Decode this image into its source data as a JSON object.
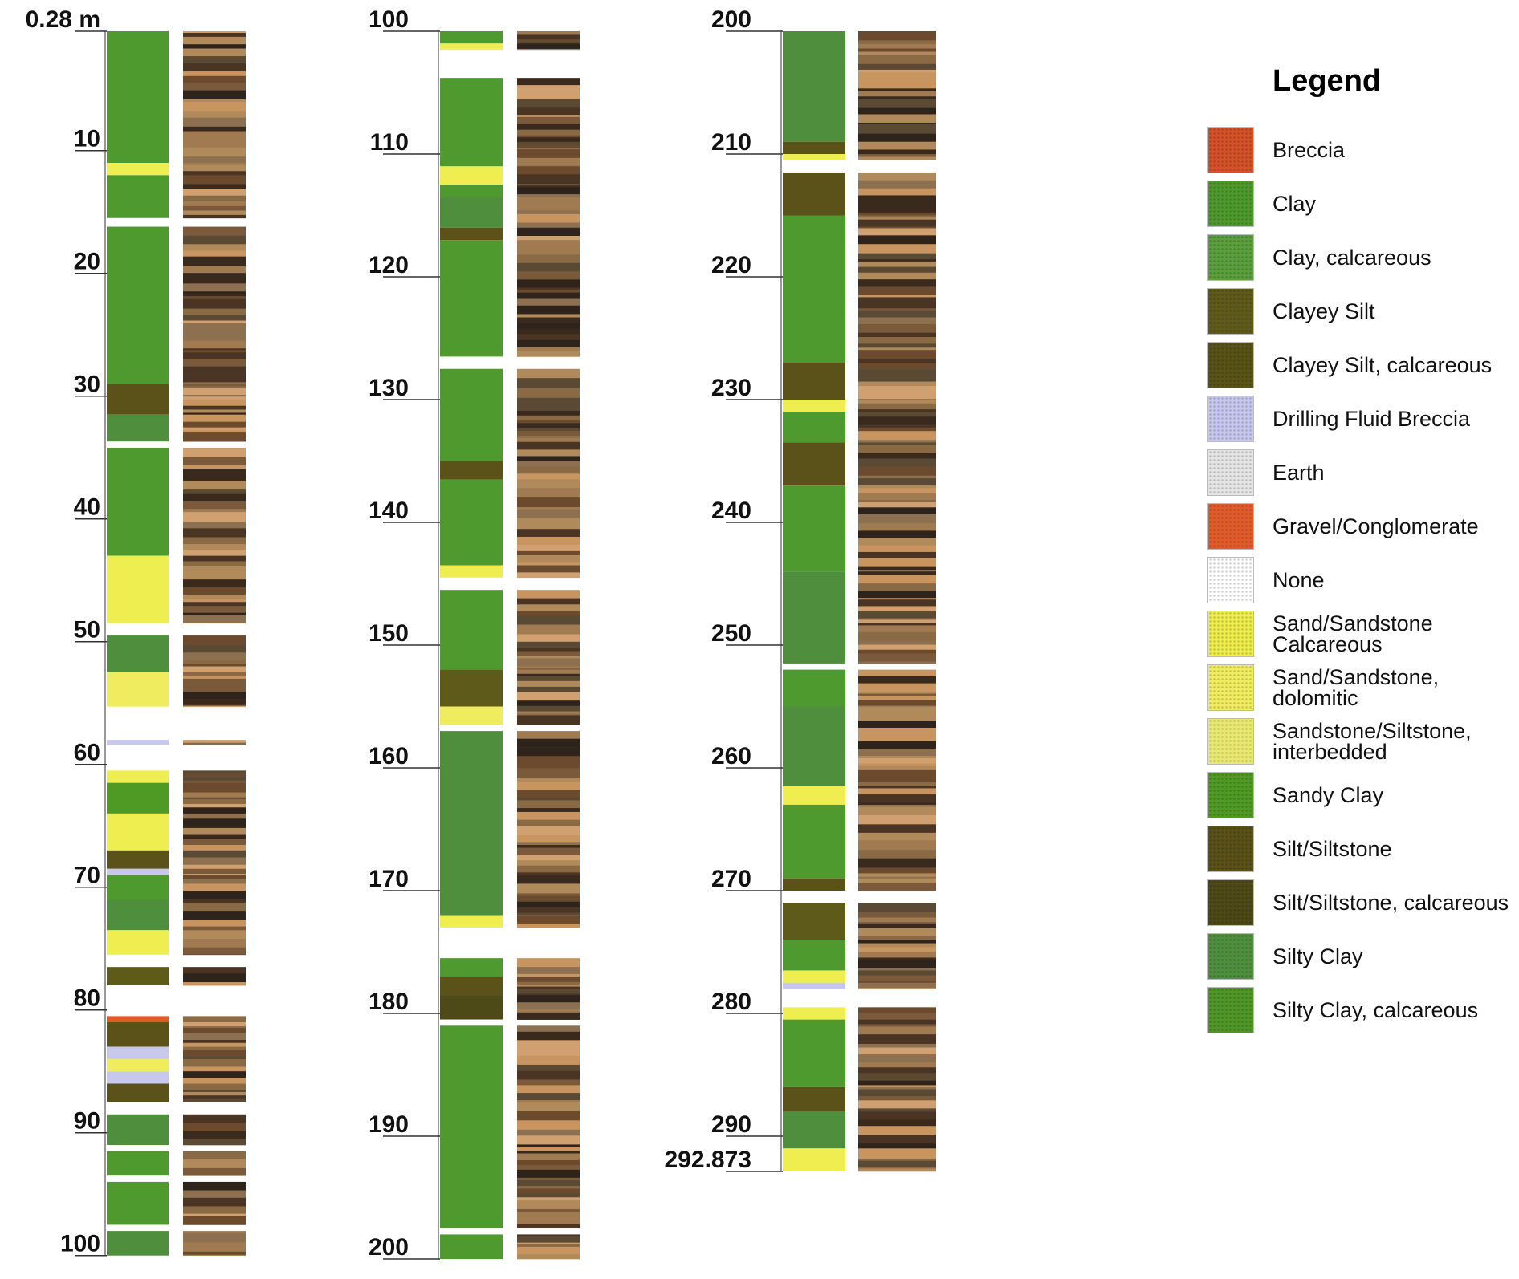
{
  "chart_data": [
    {
      "type": "lithology-log",
      "ylim": [
        0.28,
        100
      ],
      "yticks": [
        {
          "value": 0.28,
          "label": "0.28 m"
        },
        10,
        20,
        30,
        40,
        50,
        60,
        70,
        80,
        90,
        100
      ],
      "intervals": [
        {
          "top": 0.28,
          "bottom": 11,
          "lithology": "Clay"
        },
        {
          "top": 11,
          "bottom": 12,
          "lithology": "Sand/Sandstone Calcareous"
        },
        {
          "top": 12,
          "bottom": 15.5,
          "lithology": "Clay"
        },
        {
          "top": 15.5,
          "bottom": 16.2,
          "lithology": "None"
        },
        {
          "top": 16.2,
          "bottom": 29,
          "lithology": "Clay"
        },
        {
          "top": 29,
          "bottom": 31.5,
          "lithology": "Silt/Siltstone"
        },
        {
          "top": 31.5,
          "bottom": 33.7,
          "lithology": "Silty Clay"
        },
        {
          "top": 33.7,
          "bottom": 34.2,
          "lithology": "None"
        },
        {
          "top": 34.2,
          "bottom": 43,
          "lithology": "Clay"
        },
        {
          "top": 43,
          "bottom": 48.5,
          "lithology": "Sand/Sandstone Calcareous"
        },
        {
          "top": 48.5,
          "bottom": 49.5,
          "lithology": "None"
        },
        {
          "top": 49.5,
          "bottom": 52.5,
          "lithology": "Silty Clay"
        },
        {
          "top": 52.5,
          "bottom": 55.3,
          "lithology": "Sand/Sandstone, dolomitic"
        },
        {
          "top": 55.3,
          "bottom": 58,
          "lithology": "None"
        },
        {
          "top": 58,
          "bottom": 58.4,
          "lithology": "Drilling Fluid Breccia"
        },
        {
          "top": 58.4,
          "bottom": 60.5,
          "lithology": "None"
        },
        {
          "top": 60.5,
          "bottom": 61.5,
          "lithology": "Sand/Sandstone Calcareous"
        },
        {
          "top": 61.5,
          "bottom": 64,
          "lithology": "Sandy Clay"
        },
        {
          "top": 64,
          "bottom": 67,
          "lithology": "Sand/Sandstone Calcareous"
        },
        {
          "top": 67,
          "bottom": 68.5,
          "lithology": "Silt/Siltstone"
        },
        {
          "top": 68.5,
          "bottom": 69,
          "lithology": "Drilling Fluid Breccia"
        },
        {
          "top": 69,
          "bottom": 71,
          "lithology": "Clay"
        },
        {
          "top": 71,
          "bottom": 73.5,
          "lithology": "Silty Clay"
        },
        {
          "top": 73.5,
          "bottom": 75.5,
          "lithology": "Sand/Sandstone Calcareous"
        },
        {
          "top": 75.5,
          "bottom": 76.5,
          "lithology": "None"
        },
        {
          "top": 76.5,
          "bottom": 78,
          "lithology": "Clayey Silt"
        },
        {
          "top": 78,
          "bottom": 80.5,
          "lithology": "None"
        },
        {
          "top": 80.5,
          "bottom": 81,
          "lithology": "Gravel/Conglomerate"
        },
        {
          "top": 81,
          "bottom": 83,
          "lithology": "Silt/Siltstone"
        },
        {
          "top": 83,
          "bottom": 84,
          "lithology": "Drilling Fluid Breccia"
        },
        {
          "top": 84,
          "bottom": 85,
          "lithology": "Sand/Sandstone, dolomitic"
        },
        {
          "top": 85,
          "bottom": 86,
          "lithology": "Drilling Fluid Breccia"
        },
        {
          "top": 86,
          "bottom": 87.5,
          "lithology": "Silt/Siltstone"
        },
        {
          "top": 87.5,
          "bottom": 88.5,
          "lithology": "None"
        },
        {
          "top": 88.5,
          "bottom": 91,
          "lithology": "Silty Clay"
        },
        {
          "top": 91,
          "bottom": 91.5,
          "lithology": "None"
        },
        {
          "top": 91.5,
          "bottom": 93.5,
          "lithology": "Clay"
        },
        {
          "top": 93.5,
          "bottom": 94,
          "lithology": "None"
        },
        {
          "top": 94,
          "bottom": 97.5,
          "lithology": "Clay"
        },
        {
          "top": 97.5,
          "bottom": 98,
          "lithology": "None"
        },
        {
          "top": 98,
          "bottom": 100,
          "lithology": "Silty Clay"
        }
      ]
    },
    {
      "type": "lithology-log",
      "ylim": [
        100,
        200
      ],
      "yticks": [
        100,
        110,
        120,
        130,
        140,
        150,
        160,
        170,
        180,
        190,
        200
      ],
      "intervals": [
        {
          "top": 100,
          "bottom": 101,
          "lithology": "Clay"
        },
        {
          "top": 101,
          "bottom": 101.5,
          "lithology": "Sand/Sandstone Calcareous"
        },
        {
          "top": 101.5,
          "bottom": 103.8,
          "lithology": "None"
        },
        {
          "top": 103.8,
          "bottom": 111,
          "lithology": "Clay"
        },
        {
          "top": 111,
          "bottom": 112.5,
          "lithology": "Sand/Sandstone Calcareous"
        },
        {
          "top": 112.5,
          "bottom": 113.5,
          "lithology": "Clay"
        },
        {
          "top": 113.5,
          "bottom": 116,
          "lithology": "Silty Clay"
        },
        {
          "top": 116,
          "bottom": 117,
          "lithology": "Silt/Siltstone"
        },
        {
          "top": 117,
          "bottom": 126.5,
          "lithology": "Clay"
        },
        {
          "top": 126.5,
          "bottom": 127.5,
          "lithology": "None"
        },
        {
          "top": 127.5,
          "bottom": 135,
          "lithology": "Clay"
        },
        {
          "top": 135,
          "bottom": 136.5,
          "lithology": "Silt/Siltstone"
        },
        {
          "top": 136.5,
          "bottom": 143.5,
          "lithology": "Clay"
        },
        {
          "top": 143.5,
          "bottom": 144.5,
          "lithology": "Sand/Sandstone Calcareous"
        },
        {
          "top": 144.5,
          "bottom": 145.5,
          "lithology": "None"
        },
        {
          "top": 145.5,
          "bottom": 152,
          "lithology": "Clay"
        },
        {
          "top": 152,
          "bottom": 155,
          "lithology": "Clayey Silt"
        },
        {
          "top": 155,
          "bottom": 156.5,
          "lithology": "Sand/Sandstone, dolomitic"
        },
        {
          "top": 156.5,
          "bottom": 157,
          "lithology": "None"
        },
        {
          "top": 157,
          "bottom": 172,
          "lithology": "Silty Clay"
        },
        {
          "top": 172,
          "bottom": 173,
          "lithology": "Sand/Sandstone Calcareous"
        },
        {
          "top": 173,
          "bottom": 175.5,
          "lithology": "None"
        },
        {
          "top": 175.5,
          "bottom": 177,
          "lithology": "Clay"
        },
        {
          "top": 177,
          "bottom": 178.5,
          "lithology": "Silt/Siltstone"
        },
        {
          "top": 178.5,
          "bottom": 180.5,
          "lithology": "Silt/Siltstone, calcareous"
        },
        {
          "top": 180.5,
          "bottom": 181,
          "lithology": "None"
        },
        {
          "top": 181,
          "bottom": 197.5,
          "lithology": "Clay"
        },
        {
          "top": 197.5,
          "bottom": 198,
          "lithology": "None"
        },
        {
          "top": 198,
          "bottom": 200,
          "lithology": "Clay"
        }
      ]
    },
    {
      "type": "lithology-log",
      "ylim": [
        200,
        292.873
      ],
      "yticks": [
        200,
        210,
        220,
        230,
        240,
        250,
        260,
        270,
        280,
        290,
        292.873
      ],
      "intervals": [
        {
          "top": 200,
          "bottom": 209,
          "lithology": "Silty Clay"
        },
        {
          "top": 209,
          "bottom": 210,
          "lithology": "Silt/Siltstone"
        },
        {
          "top": 210,
          "bottom": 210.5,
          "lithology": "Sand/Sandstone Calcareous"
        },
        {
          "top": 210.5,
          "bottom": 211.5,
          "lithology": "None"
        },
        {
          "top": 211.5,
          "bottom": 215,
          "lithology": "Silt/Siltstone"
        },
        {
          "top": 215,
          "bottom": 227,
          "lithology": "Clay"
        },
        {
          "top": 227,
          "bottom": 230,
          "lithology": "Silt/Siltstone"
        },
        {
          "top": 230,
          "bottom": 231,
          "lithology": "Sand/Sandstone Calcareous"
        },
        {
          "top": 231,
          "bottom": 233.5,
          "lithology": "Clay"
        },
        {
          "top": 233.5,
          "bottom": 237,
          "lithology": "Silt/Siltstone"
        },
        {
          "top": 237,
          "bottom": 244,
          "lithology": "Clay"
        },
        {
          "top": 244,
          "bottom": 251.5,
          "lithology": "Silty Clay"
        },
        {
          "top": 251.5,
          "bottom": 252,
          "lithology": "None"
        },
        {
          "top": 252,
          "bottom": 255,
          "lithology": "Clay"
        },
        {
          "top": 255,
          "bottom": 261.5,
          "lithology": "Silty Clay"
        },
        {
          "top": 261.5,
          "bottom": 263,
          "lithology": "Sand/Sandstone Calcareous"
        },
        {
          "top": 263,
          "bottom": 269,
          "lithology": "Clay"
        },
        {
          "top": 269,
          "bottom": 270,
          "lithology": "Silt/Siltstone"
        },
        {
          "top": 270,
          "bottom": 271,
          "lithology": "None"
        },
        {
          "top": 271,
          "bottom": 274,
          "lithology": "Clayey Silt"
        },
        {
          "top": 274,
          "bottom": 276.5,
          "lithology": "Clay"
        },
        {
          "top": 276.5,
          "bottom": 277.5,
          "lithology": "Sand/Sandstone Calcareous"
        },
        {
          "top": 277.5,
          "bottom": 278,
          "lithology": "Drilling Fluid Breccia"
        },
        {
          "top": 278,
          "bottom": 279.5,
          "lithology": "None"
        },
        {
          "top": 279.5,
          "bottom": 280.5,
          "lithology": "Sand/Sandstone Calcareous"
        },
        {
          "top": 280.5,
          "bottom": 286,
          "lithology": "Clay"
        },
        {
          "top": 286,
          "bottom": 288,
          "lithology": "Silt/Siltstone"
        },
        {
          "top": 288,
          "bottom": 291,
          "lithology": "Silty Clay"
        },
        {
          "top": 291,
          "bottom": 292.873,
          "lithology": "Sand/Sandstone Calcareous"
        }
      ]
    }
  ],
  "legend": {
    "title": "Legend",
    "items": [
      {
        "name": "Breccia",
        "color": "#d4532a"
      },
      {
        "name": "Clay",
        "color": "#4f9a2e"
      },
      {
        "name": "Clay, calcareous",
        "color": "#5a9e3e"
      },
      {
        "name": "Clayey Silt",
        "color": "#5e5a1a"
      },
      {
        "name": "Clayey Silt, calcareous",
        "color": "#585418"
      },
      {
        "name": "Drilling Fluid Breccia",
        "color": "#c8c8ee"
      },
      {
        "name": "Earth",
        "color": "#e4e4e4"
      },
      {
        "name": "Gravel/Conglomerate",
        "color": "#e05a2a"
      },
      {
        "name": "None",
        "color": "#ffffff"
      },
      {
        "name": "Sand/Sandstone Calcareous",
        "color": "#eeee50"
      },
      {
        "name": "Sand/Sandstone, dolomitic",
        "color": "#f0ec60"
      },
      {
        "name": "Sandstone/Siltstone, interbedded",
        "color": "#e8e870"
      },
      {
        "name": "Sandy Clay",
        "color": "#4f9a25"
      },
      {
        "name": "Silt/Siltstone",
        "color": "#5a5218"
      },
      {
        "name": "Silt/Siltstone, calcareous",
        "color": "#4e4a18"
      },
      {
        "name": "Silty Clay",
        "color": "#4e8e3c"
      },
      {
        "name": "Silty Clay, calcareous",
        "color": "#4f9528"
      }
    ]
  }
}
